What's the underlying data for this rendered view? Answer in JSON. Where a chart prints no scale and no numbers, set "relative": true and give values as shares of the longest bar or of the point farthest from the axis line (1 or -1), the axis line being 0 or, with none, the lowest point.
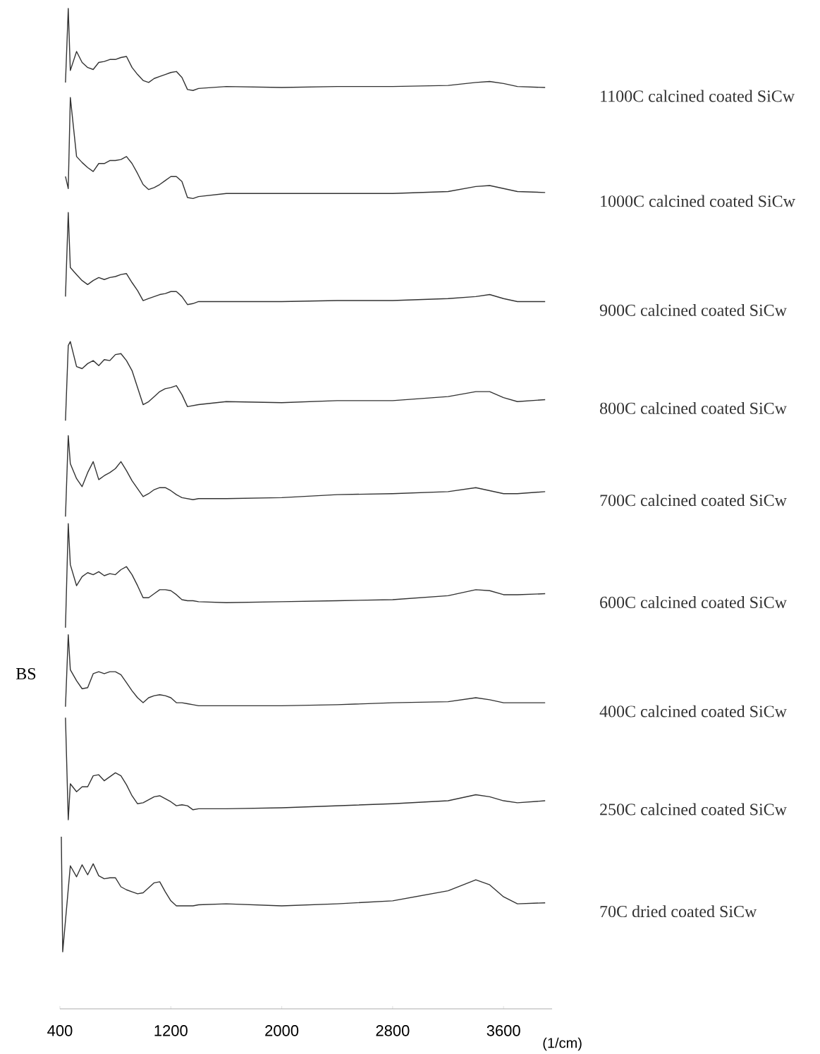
{
  "chart_data": {
    "type": "line",
    "relative": true,
    "xlabel": "(1/cm)",
    "ylabel": "BS",
    "xlim": [
      400,
      3950
    ],
    "xticks": [
      400,
      1200,
      2000,
      2800,
      3600
    ],
    "x": [
      440,
      460,
      475,
      520,
      560,
      600,
      640,
      680,
      720,
      760,
      800,
      840,
      880,
      920,
      960,
      1000,
      1040,
      1080,
      1120,
      1160,
      1200,
      1240,
      1280,
      1320,
      1360,
      1400,
      1600,
      2000,
      2400,
      2800,
      3200,
      3400,
      3500,
      3600,
      3700,
      3900
    ],
    "series": [
      {
        "name": "1100C calcined coated SiCw",
        "color": "#333333",
        "values": [
          0.926,
          1,
          0.938,
          0.957,
          0.946,
          0.941,
          0.939,
          0.946,
          0.947,
          0.949,
          0.949,
          0.951,
          0.952,
          0.941,
          0.934,
          0.928,
          0.926,
          0.93,
          0.932,
          0.934,
          0.936,
          0.937,
          0.931,
          0.919,
          0.918,
          0.92,
          0.922,
          0.921,
          0.922,
          0.922,
          0.923,
          0.926,
          0.927,
          0.925,
          0.922,
          0.921
        ]
      },
      {
        "name": "1000C calcined coated SiCw",
        "color": "#333333",
        "values": [
          0.832,
          0.82,
          0.911,
          0.852,
          0.846,
          0.841,
          0.837,
          0.845,
          0.845,
          0.848,
          0.848,
          0.849,
          0.852,
          0.845,
          0.835,
          0.824,
          0.819,
          0.821,
          0.824,
          0.828,
          0.832,
          0.832,
          0.827,
          0.811,
          0.81,
          0.812,
          0.815,
          0.815,
          0.815,
          0.815,
          0.817,
          0.822,
          0.823,
          0.82,
          0.817,
          0.816
        ]
      },
      {
        "name": "900C calcined coated SiCw",
        "color": "#333333",
        "values": [
          0.712,
          0.796,
          0.741,
          0.734,
          0.728,
          0.724,
          0.728,
          0.731,
          0.729,
          0.731,
          0.732,
          0.734,
          0.735,
          0.726,
          0.718,
          0.708,
          0.71,
          0.712,
          0.714,
          0.715,
          0.717,
          0.717,
          0.712,
          0.704,
          0.705,
          0.707,
          0.707,
          0.707,
          0.708,
          0.708,
          0.71,
          0.712,
          0.714,
          0.71,
          0.707,
          0.707
        ]
      },
      {
        "name": "800C calcined coated SiCw",
        "color": "#333333",
        "values": [
          0.588,
          0.663,
          0.667,
          0.642,
          0.64,
          0.645,
          0.648,
          0.643,
          0.649,
          0.648,
          0.654,
          0.655,
          0.648,
          0.638,
          0.621,
          0.604,
          0.607,
          0.612,
          0.617,
          0.62,
          0.621,
          0.623,
          0.614,
          0.602,
          0.603,
          0.604,
          0.607,
          0.606,
          0.608,
          0.608,
          0.612,
          0.617,
          0.617,
          0.611,
          0.607,
          0.609
        ]
      },
      {
        "name": "700C calcined coated SiCw",
        "color": "#333333",
        "values": [
          0.492,
          0.573,
          0.545,
          0.53,
          0.522,
          0.536,
          0.547,
          0.529,
          0.533,
          0.536,
          0.54,
          0.547,
          0.538,
          0.528,
          0.52,
          0.512,
          0.515,
          0.519,
          0.521,
          0.521,
          0.518,
          0.514,
          0.511,
          0.51,
          0.509,
          0.51,
          0.51,
          0.511,
          0.514,
          0.515,
          0.517,
          0.521,
          0.518,
          0.515,
          0.515,
          0.517
        ]
      },
      {
        "name": "600C calcined coated SiCw",
        "color": "#333333",
        "values": [
          0.381,
          0.485,
          0.444,
          0.423,
          0.432,
          0.436,
          0.434,
          0.437,
          0.433,
          0.435,
          0.434,
          0.439,
          0.442,
          0.434,
          0.423,
          0.411,
          0.411,
          0.415,
          0.419,
          0.419,
          0.418,
          0.414,
          0.409,
          0.408,
          0.408,
          0.407,
          0.406,
          0.407,
          0.408,
          0.409,
          0.413,
          0.419,
          0.418,
          0.414,
          0.414,
          0.415
        ]
      },
      {
        "name": "400C calcined coated SiCw",
        "color": "#333333",
        "values": [
          0.302,
          0.374,
          0.339,
          0.328,
          0.32,
          0.321,
          0.335,
          0.337,
          0.335,
          0.337,
          0.337,
          0.334,
          0.326,
          0.318,
          0.311,
          0.306,
          0.311,
          0.313,
          0.314,
          0.313,
          0.311,
          0.306,
          0.306,
          0.305,
          0.304,
          0.303,
          0.303,
          0.303,
          0.304,
          0.306,
          0.307,
          0.311,
          0.309,
          0.306,
          0.306,
          0.306
        ]
      },
      {
        "name": "250C calcined coated SiCw",
        "color": "#333333",
        "values": [
          0.291,
          0.189,
          0.225,
          0.217,
          0.222,
          0.222,
          0.233,
          0.234,
          0.228,
          0.232,
          0.236,
          0.233,
          0.224,
          0.213,
          0.205,
          0.206,
          0.209,
          0.212,
          0.213,
          0.21,
          0.207,
          0.203,
          0.204,
          0.203,
          0.199,
          0.2,
          0.2,
          0.201,
          0.203,
          0.205,
          0.208,
          0.214,
          0.212,
          0.208,
          0.206,
          0.208
        ]
      },
      {
        "name": "70C dried coated SiCw",
        "color": "#333333",
        "x": [
          410,
          420,
          475,
          520,
          560,
          600,
          640,
          680,
          720,
          760,
          800,
          840,
          880,
          920,
          960,
          1000,
          1040,
          1080,
          1120,
          1160,
          1200,
          1240,
          1280,
          1320,
          1360,
          1400,
          1600,
          2000,
          2400,
          2800,
          3200,
          3400,
          3500,
          3600,
          3700,
          3900
        ],
        "values": [
          0.172,
          0.057,
          0.143,
          0.132,
          0.144,
          0.134,
          0.145,
          0.133,
          0.13,
          0.131,
          0.131,
          0.122,
          0.119,
          0.117,
          0.115,
          0.116,
          0.121,
          0.126,
          0.127,
          0.117,
          0.108,
          0.103,
          0.103,
          0.103,
          0.103,
          0.104,
          0.105,
          0.103,
          0.105,
          0.108,
          0.118,
          0.129,
          0.124,
          0.112,
          0.105,
          0.106
        ]
      }
    ]
  }
}
